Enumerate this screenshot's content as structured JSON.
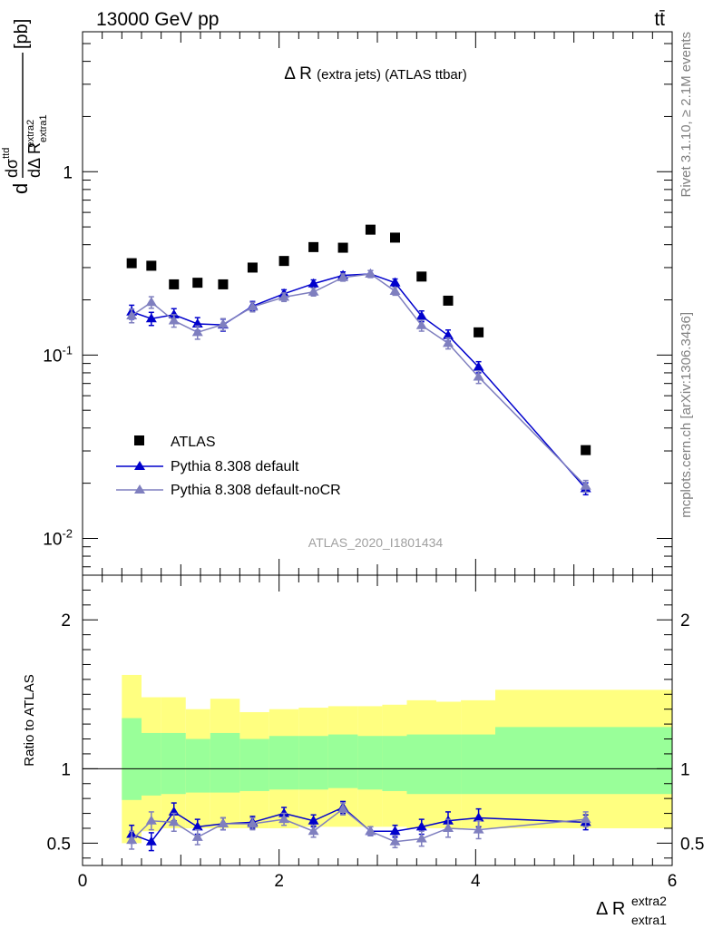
{
  "header": {
    "energy": "13000 GeV pp",
    "process": "tt̄",
    "side_top": "Rivet 3.1.10, ≥ 2.1M events",
    "side_bottom": "mcplots.cern.ch [arXiv:1306.3436]"
  },
  "chart_data": [
    {
      "type": "scatter",
      "title": "Δ R (extra jets) (ATLAS ttbar)",
      "analysis_label": "ATLAS_2020_I1801434",
      "ylabel": "dσ^ttd / dΔ R^extra2_extra1 [pb]",
      "yscale": "log",
      "xlim": [
        0,
        6
      ],
      "ylim": [
        0.0063,
        5.8
      ],
      "y_tick_labels": [
        "10^-2",
        "10^-1",
        "1"
      ],
      "legend_position": "lower-left",
      "series": [
        {
          "name": "ATLAS",
          "color": "#000000",
          "marker": "square",
          "x": [
            0.5,
            0.7,
            0.93,
            1.17,
            1.43,
            1.73,
            2.05,
            2.35,
            2.65,
            2.93,
            3.18,
            3.45,
            3.72,
            4.03,
            5.12
          ],
          "y": [
            0.317,
            0.307,
            0.243,
            0.248,
            0.243,
            0.3,
            0.326,
            0.388,
            0.385,
            0.483,
            0.437,
            0.268,
            0.198,
            0.133,
            0.0303
          ]
        },
        {
          "name": "Pythia 8.308 default",
          "color": "#0000cc",
          "marker": "triangle",
          "x": [
            0.5,
            0.7,
            0.93,
            1.17,
            1.43,
            1.73,
            2.05,
            2.35,
            2.65,
            2.93,
            3.18,
            3.45,
            3.72,
            4.03,
            5.12
          ],
          "y": [
            0.172,
            0.158,
            0.166,
            0.148,
            0.146,
            0.185,
            0.216,
            0.245,
            0.272,
            0.277,
            0.248,
            0.163,
            0.128,
            0.086,
            0.0187
          ],
          "err": [
            0.015,
            0.013,
            0.013,
            0.012,
            0.011,
            0.011,
            0.011,
            0.012,
            0.012,
            0.012,
            0.012,
            0.011,
            0.009,
            0.006,
            0.0014
          ]
        },
        {
          "name": "Pythia 8.308 default-noCR",
          "color": "#7f7fbf",
          "marker": "triangle",
          "x": [
            0.5,
            0.7,
            0.93,
            1.17,
            1.43,
            1.73,
            2.05,
            2.35,
            2.65,
            2.93,
            3.18,
            3.45,
            3.72,
            4.03,
            5.12
          ],
          "y": [
            0.164,
            0.194,
            0.154,
            0.133,
            0.147,
            0.183,
            0.207,
            0.221,
            0.265,
            0.277,
            0.223,
            0.145,
            0.116,
            0.076,
            0.0193
          ],
          "err": [
            0.014,
            0.014,
            0.012,
            0.011,
            0.011,
            0.011,
            0.011,
            0.011,
            0.012,
            0.012,
            0.011,
            0.01,
            0.008,
            0.006,
            0.0014
          ]
        }
      ]
    },
    {
      "type": "scatter",
      "xlabel": "Δ R^extra2_extra1",
      "ylabel": "Ratio to ATLAS",
      "xlim": [
        0,
        6
      ],
      "ylim": [
        0.35,
        2.3
      ],
      "x_ticks": [
        0,
        2,
        4,
        6
      ],
      "y_ticks": [
        0.5,
        1,
        2
      ],
      "reference_line": 1,
      "uncertainty_bands": {
        "bin_edges": [
          0.4,
          0.6,
          0.8,
          1.05,
          1.3,
          1.6,
          1.9,
          2.2,
          2.5,
          2.8,
          3.05,
          3.3,
          3.6,
          3.85,
          4.2,
          6.0
        ],
        "yellow_band": {
          "color": "#ffff80",
          "low": [
            0.5,
            0.58,
            0.6,
            0.6,
            0.6,
            0.6,
            0.6,
            0.61,
            0.61,
            0.61,
            0.61,
            0.6,
            0.6,
            0.6,
            0.6
          ],
          "high": [
            1.63,
            1.48,
            1.48,
            1.4,
            1.47,
            1.38,
            1.4,
            1.41,
            1.42,
            1.42,
            1.43,
            1.46,
            1.45,
            1.46,
            1.53
          ]
        },
        "green_band": {
          "color": "#99ff99",
          "low": [
            0.79,
            0.82,
            0.83,
            0.84,
            0.84,
            0.85,
            0.86,
            0.86,
            0.87,
            0.86,
            0.85,
            0.83,
            0.83,
            0.83,
            0.83
          ],
          "high": [
            1.34,
            1.24,
            1.24,
            1.2,
            1.24,
            1.2,
            1.22,
            1.22,
            1.23,
            1.22,
            1.22,
            1.23,
            1.23,
            1.23,
            1.28
          ]
        }
      },
      "series": [
        {
          "name": "Pythia 8.308 default",
          "color": "#0000cc",
          "x": [
            0.5,
            0.7,
            0.93,
            1.17,
            1.43,
            1.73,
            2.05,
            2.35,
            2.65,
            2.93,
            3.18,
            3.45,
            3.72,
            4.03,
            5.12
          ],
          "y": [
            0.56,
            0.51,
            0.71,
            0.61,
            0.63,
            0.64,
            0.7,
            0.65,
            0.74,
            0.58,
            0.58,
            0.61,
            0.65,
            0.67,
            0.64
          ],
          "err": [
            0.06,
            0.06,
            0.06,
            0.05,
            0.04,
            0.04,
            0.04,
            0.04,
            0.04,
            0.03,
            0.04,
            0.05,
            0.06,
            0.06,
            0.05
          ]
        },
        {
          "name": "Pythia 8.308 default-noCR",
          "color": "#7f7fbf",
          "x": [
            0.5,
            0.7,
            0.93,
            1.17,
            1.43,
            1.73,
            2.05,
            2.35,
            2.65,
            2.93,
            3.18,
            3.45,
            3.72,
            4.03,
            5.12
          ],
          "y": [
            0.52,
            0.65,
            0.64,
            0.54,
            0.63,
            0.63,
            0.66,
            0.58,
            0.73,
            0.58,
            0.51,
            0.53,
            0.6,
            0.59,
            0.66
          ],
          "err": [
            0.06,
            0.06,
            0.06,
            0.05,
            0.04,
            0.04,
            0.04,
            0.04,
            0.04,
            0.03,
            0.04,
            0.05,
            0.06,
            0.06,
            0.05
          ]
        }
      ]
    }
  ]
}
